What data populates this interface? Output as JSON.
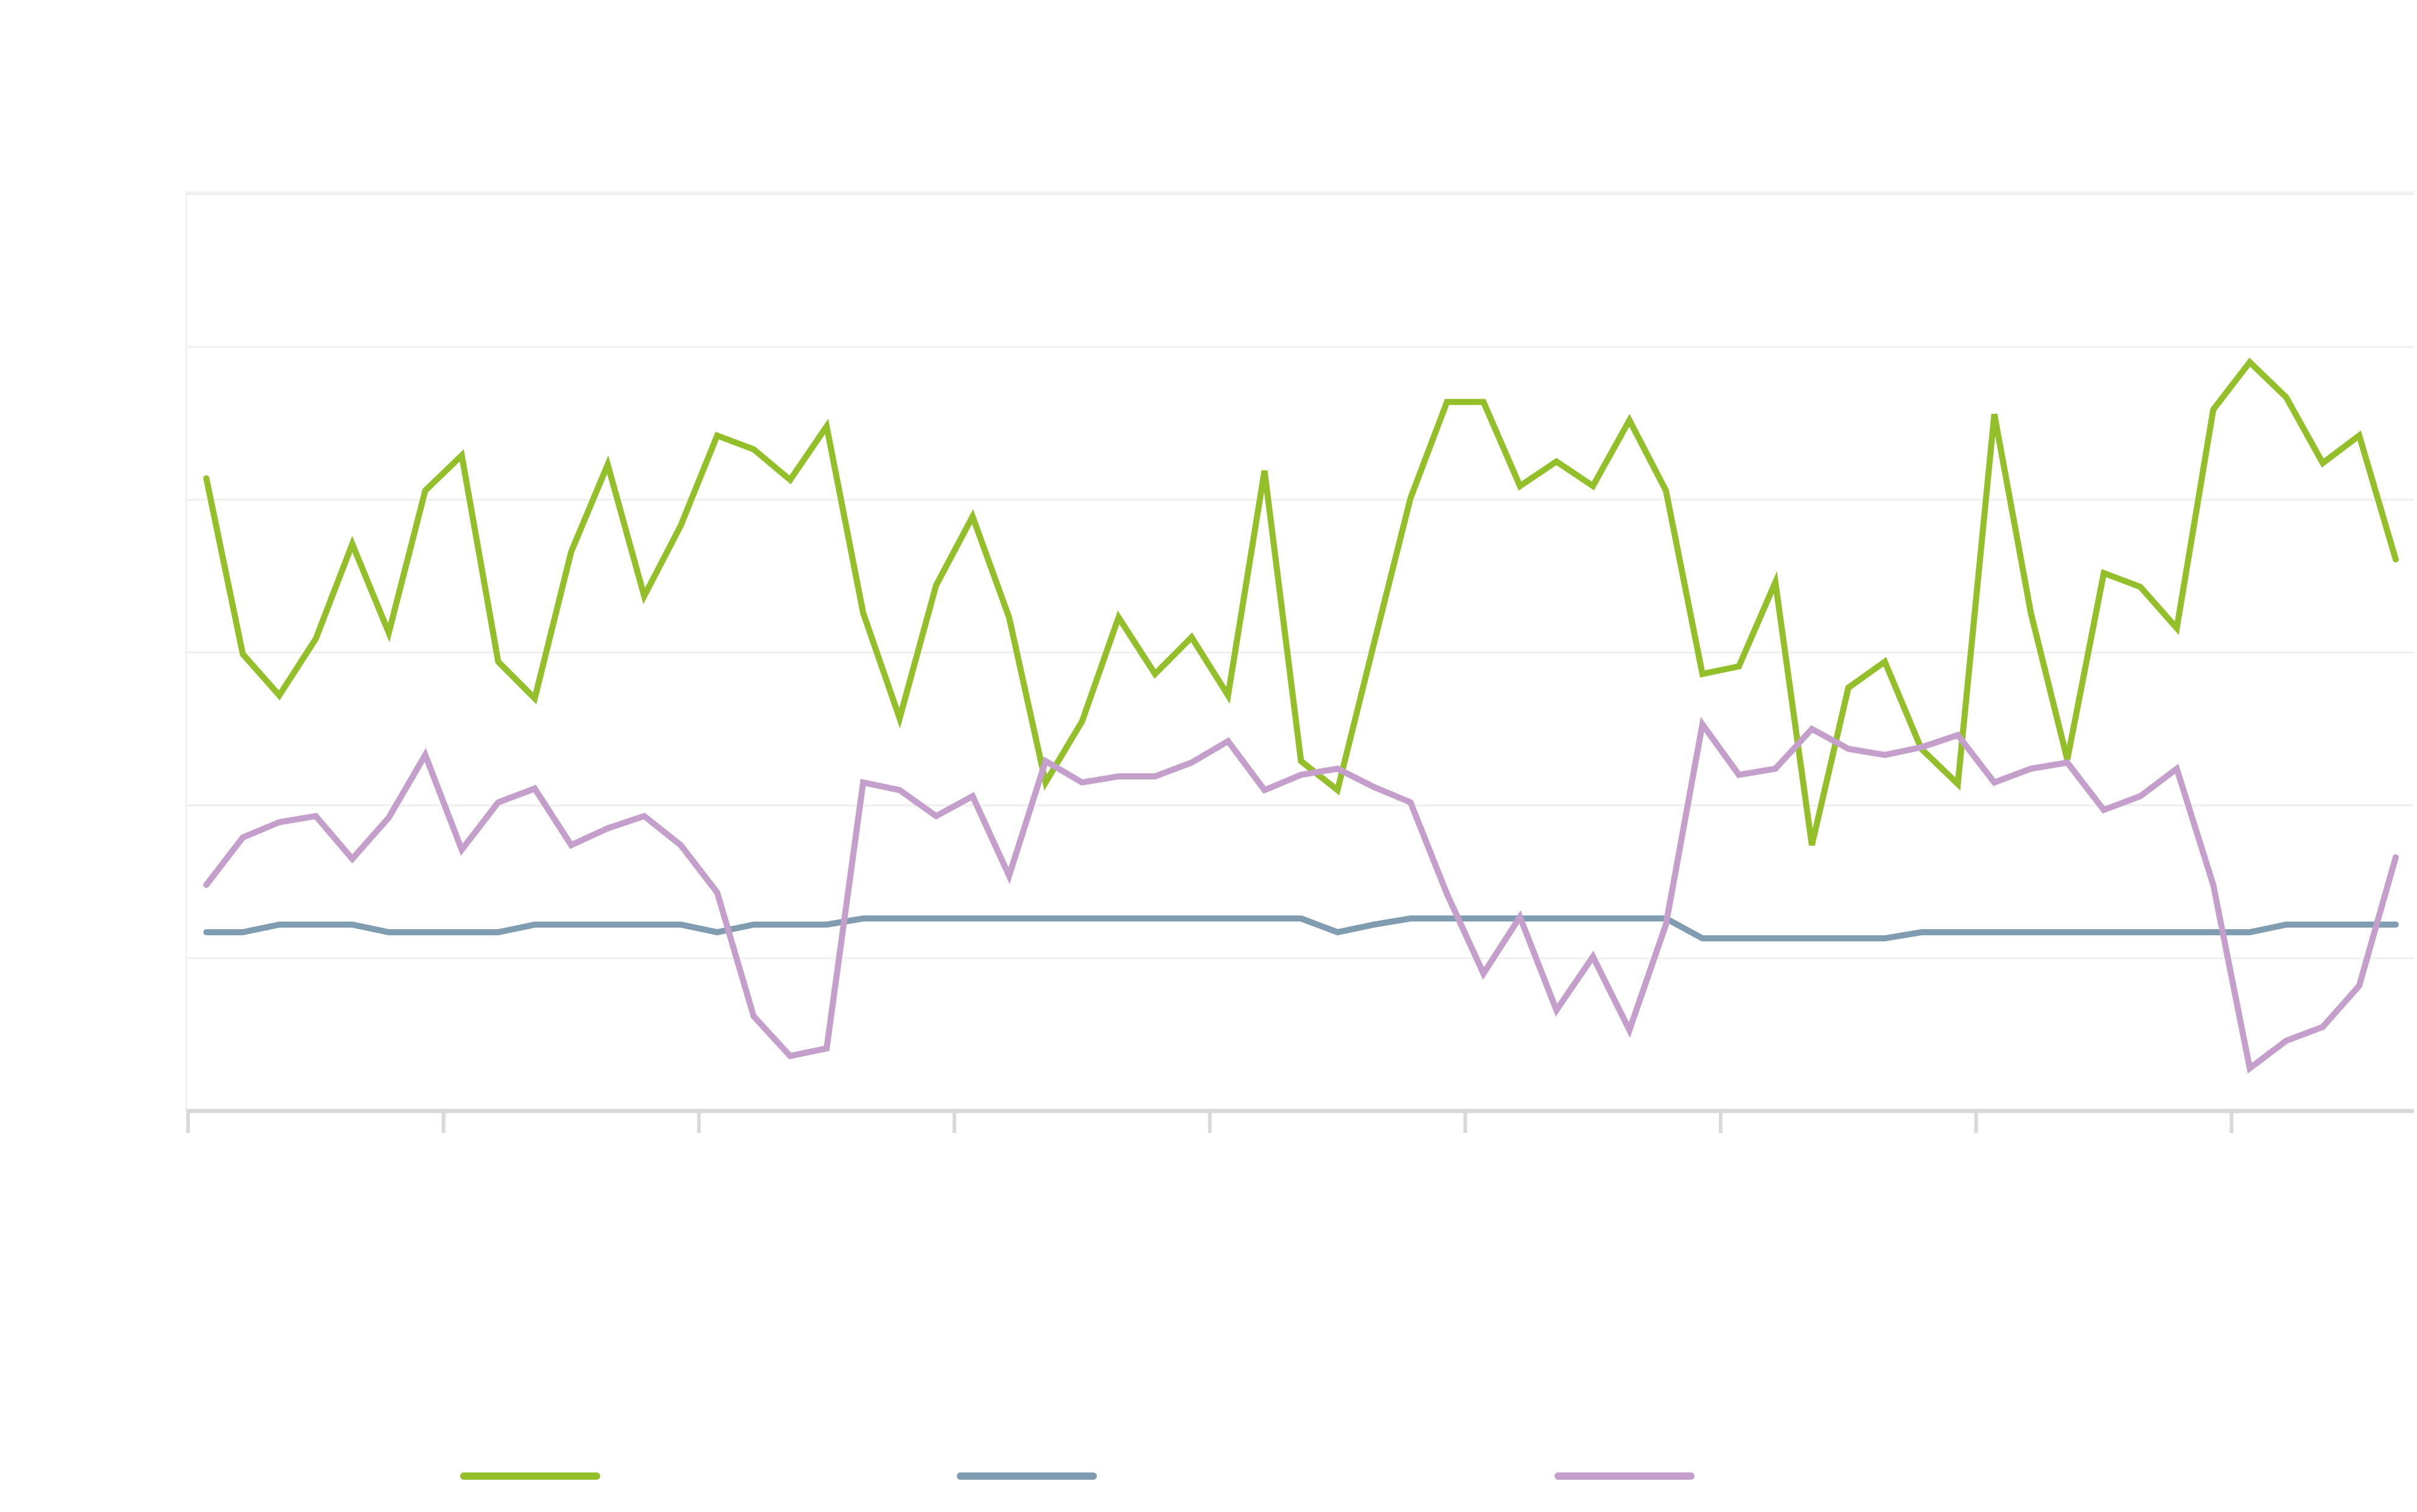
{
  "chart_data": {
    "type": "line",
    "x": [
      0,
      1,
      2,
      3,
      4,
      5,
      6,
      7,
      8,
      9,
      10,
      11,
      12,
      13,
      14,
      15,
      16,
      17,
      18,
      19,
      20,
      21,
      22,
      23,
      24,
      25,
      26,
      27,
      28,
      29,
      30,
      31,
      32,
      33,
      34,
      35,
      36,
      37,
      38,
      39,
      40,
      41,
      42,
      43,
      44,
      45,
      46,
      47,
      48,
      49,
      50,
      51,
      52,
      53,
      54,
      55,
      56,
      57,
      58,
      59,
      60
    ],
    "xlim": [
      -0.55,
      60.5
    ],
    "xticks": [
      -0.5,
      6.5,
      13.5,
      20.5,
      27.5,
      34.5,
      41.5,
      48.5,
      55.5
    ],
    "ylim": [
      0,
      6
    ],
    "yticks": [
      0,
      1,
      2,
      3,
      4,
      5,
      6
    ],
    "grid": true,
    "legend": "bottom",
    "series": [
      {
        "color": "#93bf2a",
        "values": [
          4.14,
          2.99,
          2.72,
          3.09,
          3.71,
          3.13,
          4.06,
          4.29,
          2.94,
          2.7,
          3.66,
          4.23,
          3.37,
          3.83,
          4.42,
          4.33,
          4.13,
          4.48,
          3.26,
          2.57,
          3.44,
          3.89,
          3.23,
          2.15,
          2.55,
          3.23,
          2.86,
          3.1,
          2.72,
          4.19,
          2.29,
          2.1,
          3.06,
          4.01,
          4.64,
          4.64,
          4.09,
          4.25,
          4.09,
          4.52,
          4.06,
          2.86,
          2.91,
          3.46,
          1.74,
          2.77,
          2.94,
          2.37,
          2.14,
          4.56,
          3.26,
          2.3,
          3.52,
          3.43,
          3.16,
          4.59,
          4.9,
          4.67,
          4.24,
          4.42,
          3.61
        ]
      },
      {
        "color": "#7f9cb0",
        "values": [
          1.17,
          1.17,
          1.22,
          1.22,
          1.22,
          1.17,
          1.17,
          1.17,
          1.17,
          1.22,
          1.22,
          1.22,
          1.22,
          1.22,
          1.17,
          1.22,
          1.22,
          1.22,
          1.26,
          1.26,
          1.26,
          1.26,
          1.26,
          1.26,
          1.26,
          1.26,
          1.26,
          1.26,
          1.26,
          1.26,
          1.26,
          1.17,
          1.22,
          1.26,
          1.26,
          1.26,
          1.26,
          1.26,
          1.26,
          1.26,
          1.26,
          1.13,
          1.13,
          1.13,
          1.13,
          1.13,
          1.13,
          1.17,
          1.17,
          1.17,
          1.17,
          1.17,
          1.17,
          1.17,
          1.17,
          1.17,
          1.17,
          1.22,
          1.22,
          1.22,
          1.22
        ]
      },
      {
        "color": "#c49fcb",
        "values": [
          1.48,
          1.79,
          1.89,
          1.93,
          1.65,
          1.92,
          2.33,
          1.71,
          2.02,
          2.11,
          1.74,
          1.85,
          1.93,
          1.74,
          1.43,
          0.62,
          0.36,
          0.41,
          2.15,
          2.1,
          1.93,
          2.06,
          1.54,
          2.29,
          2.15,
          2.19,
          2.19,
          2.28,
          2.42,
          2.1,
          2.2,
          2.24,
          2.12,
          2.02,
          1.42,
          0.9,
          1.27,
          0.66,
          1.01,
          0.53,
          1.22,
          2.53,
          2.2,
          2.24,
          2.5,
          2.37,
          2.33,
          2.38,
          2.46,
          2.15,
          2.24,
          2.28,
          1.97,
          2.06,
          2.24,
          1.48,
          0.28,
          0.46,
          0.55,
          0.82,
          1.66
        ]
      }
    ]
  }
}
